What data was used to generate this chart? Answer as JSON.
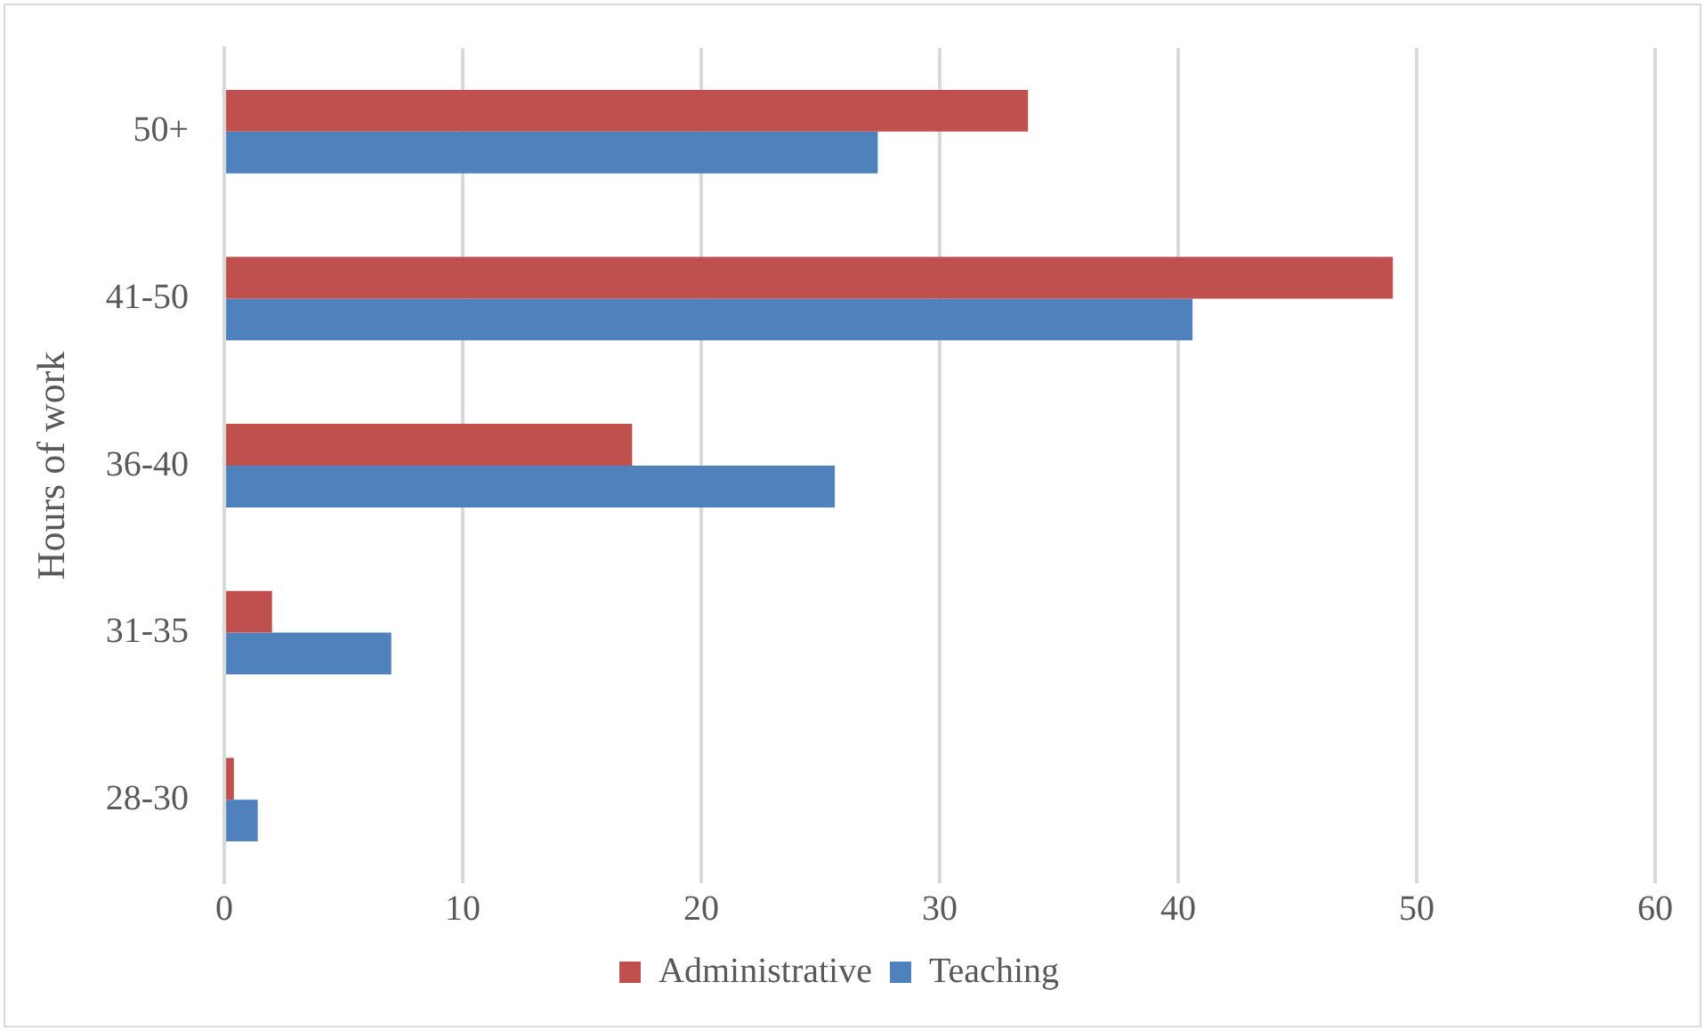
{
  "chart_data": {
    "type": "bar",
    "orientation": "horizontal",
    "ylabel": "Hours of work",
    "categories": [
      "50+",
      "41-50",
      "36-40",
      "31-35",
      "28-30"
    ],
    "series": [
      {
        "name": "Administrative",
        "color": "#c0504d",
        "values": [
          33.7,
          49.0,
          17.1,
          2.0,
          0.4
        ]
      },
      {
        "name": "Teaching",
        "color": "#4f81bd",
        "values": [
          27.4,
          40.6,
          25.6,
          7.0,
          1.4
        ]
      }
    ],
    "xlim": [
      0,
      60
    ],
    "xticks": [
      0,
      10,
      20,
      30,
      40,
      50,
      60
    ],
    "grid": "x",
    "legend": "bottom"
  }
}
